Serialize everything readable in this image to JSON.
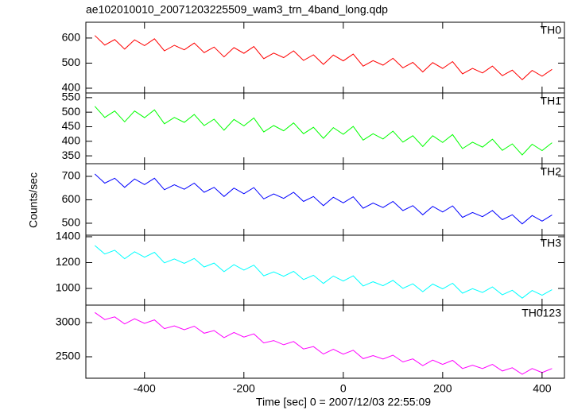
{
  "figure": {
    "title": "ae102010010_20071203225509_wam3_trn_4band_long.qdp",
    "xlabel": "Time [sec] 0 = 2007/12/03 22:55:09",
    "ylabel": "Counts/sec",
    "xlim": [
      -518,
      445
    ],
    "xticks": [
      -400,
      -200,
      0,
      200,
      400
    ],
    "x": [
      -500,
      -480,
      -460,
      -440,
      -420,
      -400,
      -380,
      -360,
      -340,
      -320,
      -300,
      -280,
      -260,
      -240,
      -220,
      -200,
      -180,
      -160,
      -140,
      -120,
      -100,
      -80,
      -60,
      -40,
      -20,
      0,
      20,
      40,
      60,
      80,
      100,
      120,
      140,
      160,
      180,
      200,
      220,
      240,
      260,
      280,
      300,
      320,
      340,
      360,
      380,
      400,
      420
    ]
  },
  "chart_data": [
    {
      "type": "line",
      "ylim": [
        381,
        663
      ],
      "yticks": [
        400,
        500,
        600
      ],
      "series": [
        {
          "name": "TH0",
          "color": "#ff0000",
          "values": [
            610,
            572,
            594,
            556,
            593,
            570,
            597,
            549,
            571,
            553,
            580,
            542,
            564,
            525,
            562,
            539,
            566,
            518,
            540,
            522,
            549,
            511,
            533,
            495,
            532,
            509,
            536,
            488,
            510,
            492,
            519,
            481,
            503,
            465,
            502,
            479,
            506,
            457,
            479,
            461,
            488,
            450,
            472,
            434,
            471,
            448,
            475
          ]
        }
      ]
    },
    {
      "type": "line",
      "ylim": [
        323,
        566
      ],
      "yticks": [
        350,
        400,
        450,
        500,
        550
      ],
      "series": [
        {
          "name": "TH1",
          "color": "#00ff00",
          "values": [
            520,
            482,
            504,
            467,
            504,
            481,
            508,
            460,
            482,
            465,
            492,
            454,
            476,
            438,
            475,
            453,
            480,
            432,
            454,
            436,
            463,
            426,
            448,
            410,
            447,
            424,
            451,
            404,
            426,
            408,
            435,
            397,
            419,
            382,
            419,
            396,
            423,
            375,
            397,
            380,
            407,
            369,
            391,
            353,
            390,
            368,
            395
          ]
        }
      ]
    },
    {
      "type": "line",
      "ylim": [
        449,
        754
      ],
      "yticks": [
        500,
        600,
        700
      ],
      "series": [
        {
          "name": "TH2",
          "color": "#0000ff",
          "values": [
            710,
            671,
            692,
            653,
            689,
            665,
            692,
            643,
            664,
            645,
            671,
            632,
            653,
            614,
            650,
            626,
            652,
            604,
            625,
            606,
            632,
            593,
            614,
            575,
            611,
            587,
            613,
            564,
            586,
            567,
            593,
            554,
            575,
            536,
            572,
            548,
            574,
            525,
            546,
            528,
            554,
            515,
            536,
            497,
            533,
            509,
            535
          ]
        }
      ]
    },
    {
      "type": "line",
      "ylim": [
        871,
        1412
      ],
      "yticks": [
        1000,
        1200,
        1400
      ],
      "series": [
        {
          "name": "TH3",
          "color": "#00ffff",
          "values": [
            1332,
            1266,
            1296,
            1230,
            1284,
            1242,
            1280,
            1198,
            1228,
            1194,
            1232,
            1166,
            1196,
            1130,
            1184,
            1142,
            1180,
            1098,
            1128,
            1094,
            1132,
            1069,
            1102,
            1039,
            1096,
            1057,
            1098,
            1019,
            1052,
            1021,
            1062,
            1001,
            1036,
            975,
            1034,
            997,
            1040,
            963,
            998,
            969,
            1012,
            951,
            986,
            925,
            984,
            947,
            990
          ]
        }
      ]
    },
    {
      "type": "line",
      "ylim": [
        2186,
        3256
      ],
      "yticks": [
        2500,
        3000
      ],
      "series": [
        {
          "name": "TH0123",
          "color": "#ff00ff",
          "values": [
            3148,
            3044,
            3084,
            2980,
            3056,
            2988,
            3040,
            2912,
            2952,
            2896,
            2948,
            2844,
            2884,
            2780,
            2856,
            2788,
            2835,
            2702,
            2737,
            2676,
            2723,
            2614,
            2649,
            2540,
            2611,
            2538,
            2595,
            2472,
            2517,
            2466,
            2523,
            2424,
            2469,
            2370,
            2451,
            2388,
            2448,
            2328,
            2376,
            2328,
            2388,
            2292,
            2340,
            2244,
            2328,
            2268,
            2328
          ]
        }
      ]
    }
  ]
}
